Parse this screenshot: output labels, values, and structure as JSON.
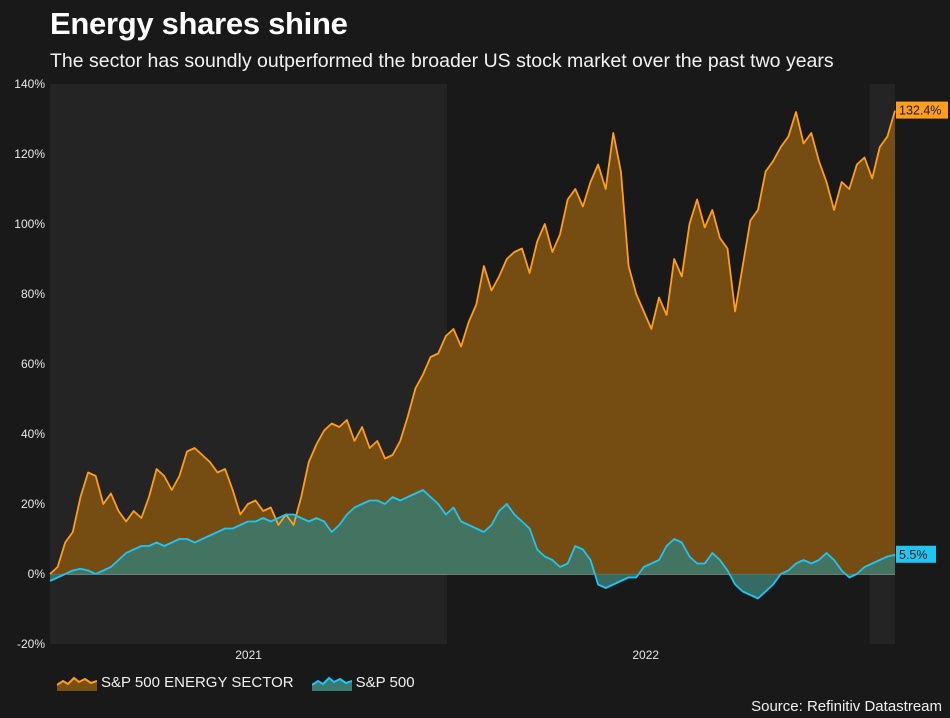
{
  "header": {
    "title": "Energy shares shine",
    "subtitle": "The sector has soundly outperformed the broader US stock market over the past two years"
  },
  "footer": {
    "source": "Source: Refinitiv Datastream"
  },
  "chart_data": {
    "type": "area",
    "title": "Energy shares shine",
    "xlabel": "",
    "ylabel": "",
    "ylim": [
      -20,
      140
    ],
    "y_ticks": [
      "-20%",
      "0%",
      "20%",
      "40%",
      "60%",
      "80%",
      "100%",
      "120%",
      "140%"
    ],
    "y_tick_values": [
      -20,
      0,
      20,
      40,
      60,
      80,
      100,
      120,
      140
    ],
    "x_tick_labels": [
      {
        "label": "2021",
        "t": 0.235
      },
      {
        "label": "2022",
        "t": 0.705
      }
    ],
    "shaded_periods": [
      [
        0.0,
        0.47
      ],
      [
        0.97,
        1.0
      ]
    ],
    "colors": {
      "energy_line": "#ff9e1b",
      "energy_fill": "#7a4f12",
      "sp500_line": "#1fc6f2",
      "sp500_fill": "#3b7a70",
      "background": "#191919",
      "shade": "#242424"
    },
    "series": [
      {
        "name": "S&P 500 ENERGY SECTOR",
        "end_label": "132.4%",
        "points": [
          [
            0.0,
            0
          ],
          [
            0.01,
            2
          ],
          [
            0.02,
            9
          ],
          [
            0.03,
            12
          ],
          [
            0.04,
            22
          ],
          [
            0.05,
            29
          ],
          [
            0.06,
            28
          ],
          [
            0.07,
            20
          ],
          [
            0.08,
            23
          ],
          [
            0.09,
            18
          ],
          [
            0.1,
            15
          ],
          [
            0.11,
            18
          ],
          [
            0.12,
            16
          ],
          [
            0.13,
            22
          ],
          [
            0.14,
            30
          ],
          [
            0.15,
            28
          ],
          [
            0.16,
            24
          ],
          [
            0.17,
            28
          ],
          [
            0.18,
            35
          ],
          [
            0.19,
            36
          ],
          [
            0.2,
            34
          ],
          [
            0.21,
            32
          ],
          [
            0.22,
            29
          ],
          [
            0.23,
            30
          ],
          [
            0.24,
            24
          ],
          [
            0.25,
            17
          ],
          [
            0.26,
            20
          ],
          [
            0.27,
            21
          ],
          [
            0.28,
            18
          ],
          [
            0.29,
            19
          ],
          [
            0.3,
            14
          ],
          [
            0.31,
            17
          ],
          [
            0.32,
            14
          ],
          [
            0.33,
            22
          ],
          [
            0.34,
            32
          ],
          [
            0.35,
            37
          ],
          [
            0.36,
            41
          ],
          [
            0.37,
            43
          ],
          [
            0.38,
            42
          ],
          [
            0.39,
            44
          ],
          [
            0.4,
            38
          ],
          [
            0.41,
            42
          ],
          [
            0.42,
            36
          ],
          [
            0.43,
            38
          ],
          [
            0.44,
            33
          ],
          [
            0.45,
            34
          ],
          [
            0.46,
            38
          ],
          [
            0.47,
            45
          ],
          [
            0.48,
            53
          ],
          [
            0.49,
            57
          ],
          [
            0.5,
            62
          ],
          [
            0.51,
            63
          ],
          [
            0.52,
            68
          ],
          [
            0.53,
            70
          ],
          [
            0.54,
            65
          ],
          [
            0.55,
            72
          ],
          [
            0.56,
            77
          ],
          [
            0.57,
            88
          ],
          [
            0.58,
            81
          ],
          [
            0.59,
            85
          ],
          [
            0.6,
            90
          ],
          [
            0.61,
            92
          ],
          [
            0.62,
            93
          ],
          [
            0.63,
            86
          ],
          [
            0.64,
            95
          ],
          [
            0.65,
            100
          ],
          [
            0.66,
            92
          ],
          [
            0.67,
            97
          ],
          [
            0.68,
            107
          ],
          [
            0.69,
            110
          ],
          [
            0.7,
            105
          ],
          [
            0.71,
            112
          ],
          [
            0.72,
            117
          ],
          [
            0.73,
            110
          ],
          [
            0.74,
            126
          ],
          [
            0.75,
            115
          ],
          [
            0.76,
            88
          ],
          [
            0.77,
            80
          ],
          [
            0.78,
            75
          ],
          [
            0.79,
            70
          ],
          [
            0.8,
            79
          ],
          [
            0.81,
            74
          ],
          [
            0.82,
            90
          ],
          [
            0.83,
            85
          ],
          [
            0.84,
            100
          ],
          [
            0.85,
            107
          ],
          [
            0.86,
            99
          ],
          [
            0.87,
            104
          ],
          [
            0.88,
            96
          ],
          [
            0.89,
            93
          ],
          [
            0.9,
            75
          ],
          [
            0.91,
            88
          ],
          [
            0.92,
            101
          ],
          [
            0.93,
            104
          ],
          [
            0.94,
            115
          ],
          [
            0.95,
            118
          ],
          [
            0.96,
            122
          ],
          [
            0.97,
            125
          ],
          [
            0.98,
            132
          ],
          [
            0.99,
            123
          ],
          [
            1.0,
            126
          ],
          [
            1.01,
            118
          ],
          [
            1.02,
            112
          ],
          [
            1.03,
            104
          ],
          [
            1.04,
            112
          ],
          [
            1.05,
            110
          ],
          [
            1.06,
            117
          ],
          [
            1.07,
            119
          ],
          [
            1.08,
            113
          ],
          [
            1.09,
            122
          ],
          [
            1.1,
            125
          ],
          [
            1.11,
            132.4
          ]
        ]
      },
      {
        "name": "S&P 500",
        "end_label": "5.5%",
        "points": [
          [
            0.0,
            -2
          ],
          [
            0.01,
            -1
          ],
          [
            0.02,
            0
          ],
          [
            0.03,
            1
          ],
          [
            0.04,
            1.5
          ],
          [
            0.05,
            1
          ],
          [
            0.06,
            0
          ],
          [
            0.07,
            1
          ],
          [
            0.08,
            2
          ],
          [
            0.09,
            4
          ],
          [
            0.1,
            6
          ],
          [
            0.11,
            7
          ],
          [
            0.12,
            8
          ],
          [
            0.13,
            8
          ],
          [
            0.14,
            9
          ],
          [
            0.15,
            8
          ],
          [
            0.16,
            9
          ],
          [
            0.17,
            10
          ],
          [
            0.18,
            10
          ],
          [
            0.19,
            9
          ],
          [
            0.2,
            10
          ],
          [
            0.21,
            11
          ],
          [
            0.22,
            12
          ],
          [
            0.23,
            13
          ],
          [
            0.24,
            13
          ],
          [
            0.25,
            14
          ],
          [
            0.26,
            15
          ],
          [
            0.27,
            15
          ],
          [
            0.28,
            16
          ],
          [
            0.29,
            15
          ],
          [
            0.3,
            16
          ],
          [
            0.31,
            17
          ],
          [
            0.32,
            17
          ],
          [
            0.33,
            16
          ],
          [
            0.34,
            15
          ],
          [
            0.35,
            16
          ],
          [
            0.36,
            15
          ],
          [
            0.37,
            12
          ],
          [
            0.38,
            14
          ],
          [
            0.39,
            17
          ],
          [
            0.4,
            19
          ],
          [
            0.41,
            20
          ],
          [
            0.42,
            21
          ],
          [
            0.43,
            21
          ],
          [
            0.44,
            20
          ],
          [
            0.45,
            22
          ],
          [
            0.46,
            21
          ],
          [
            0.47,
            22
          ],
          [
            0.48,
            23
          ],
          [
            0.49,
            24
          ],
          [
            0.5,
            22
          ],
          [
            0.51,
            20
          ],
          [
            0.52,
            17
          ],
          [
            0.53,
            19
          ],
          [
            0.54,
            15
          ],
          [
            0.55,
            14
          ],
          [
            0.56,
            13
          ],
          [
            0.57,
            12
          ],
          [
            0.58,
            14
          ],
          [
            0.59,
            18
          ],
          [
            0.6,
            20
          ],
          [
            0.61,
            17
          ],
          [
            0.62,
            15
          ],
          [
            0.63,
            13
          ],
          [
            0.64,
            7
          ],
          [
            0.65,
            5
          ],
          [
            0.66,
            4
          ],
          [
            0.67,
            2
          ],
          [
            0.68,
            3
          ],
          [
            0.69,
            8
          ],
          [
            0.7,
            7
          ],
          [
            0.71,
            4
          ],
          [
            0.72,
            -3
          ],
          [
            0.73,
            -4
          ],
          [
            0.74,
            -3
          ],
          [
            0.75,
            -2
          ],
          [
            0.76,
            -1
          ],
          [
            0.77,
            -1
          ],
          [
            0.78,
            2
          ],
          [
            0.79,
            3
          ],
          [
            0.8,
            4
          ],
          [
            0.81,
            8
          ],
          [
            0.82,
            10
          ],
          [
            0.83,
            9
          ],
          [
            0.84,
            5
          ],
          [
            0.85,
            3
          ],
          [
            0.86,
            3
          ],
          [
            0.87,
            6
          ],
          [
            0.88,
            4
          ],
          [
            0.89,
            1
          ],
          [
            0.9,
            -3
          ],
          [
            0.91,
            -5
          ],
          [
            0.92,
            -6
          ],
          [
            0.93,
            -7
          ],
          [
            0.94,
            -5
          ],
          [
            0.95,
            -3
          ],
          [
            0.96,
            0
          ],
          [
            0.97,
            1
          ],
          [
            0.98,
            3
          ],
          [
            0.99,
            4
          ],
          [
            1.0,
            3
          ],
          [
            1.01,
            4
          ],
          [
            1.02,
            6
          ],
          [
            1.03,
            4
          ],
          [
            1.04,
            1
          ],
          [
            1.05,
            -1
          ],
          [
            1.06,
            0
          ],
          [
            1.07,
            2
          ],
          [
            1.08,
            3
          ],
          [
            1.09,
            4
          ],
          [
            1.1,
            5
          ],
          [
            1.11,
            5.5
          ]
        ]
      }
    ]
  }
}
